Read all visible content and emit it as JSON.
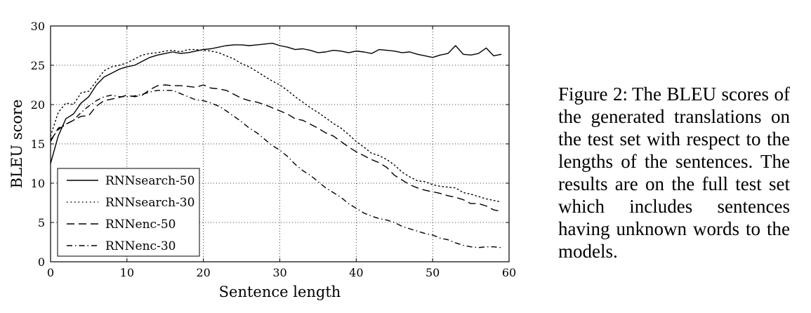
{
  "chart_data": {
    "type": "line",
    "xlabel": "Sentence length",
    "ylabel": "BLEU score",
    "xlim": [
      0,
      60
    ],
    "ylim": [
      0,
      30
    ],
    "xticks": [
      0,
      10,
      20,
      30,
      40,
      50,
      60
    ],
    "yticks": [
      0,
      5,
      10,
      15,
      20,
      25,
      30
    ],
    "grid": true,
    "legend_position": "lower-left",
    "series": [
      {
        "name": "RNNsearch-50",
        "style": "solid",
        "x": [
          0,
          1,
          2,
          3,
          4,
          5,
          6,
          7,
          8,
          9,
          10,
          11,
          12,
          13,
          14,
          15,
          16,
          17,
          18,
          19,
          20,
          21,
          22,
          23,
          24,
          25,
          26,
          27,
          28,
          29,
          30,
          31,
          32,
          33,
          34,
          35,
          36,
          37,
          38,
          39,
          40,
          41,
          42,
          43,
          44,
          45,
          46,
          47,
          48,
          49,
          50,
          51,
          52,
          53,
          54,
          55,
          56,
          57,
          58,
          59
        ],
        "values": [
          12.5,
          16.0,
          18.2,
          18.8,
          20.2,
          21.0,
          22.5,
          23.5,
          24.0,
          24.5,
          24.8,
          25.0,
          25.5,
          26.0,
          26.3,
          26.5,
          26.7,
          26.5,
          26.6,
          26.8,
          27.0,
          27.1,
          27.3,
          27.5,
          27.6,
          27.6,
          27.5,
          27.6,
          27.7,
          27.8,
          27.5,
          27.3,
          27.0,
          27.1,
          26.9,
          26.6,
          26.7,
          26.9,
          26.8,
          26.6,
          26.8,
          26.7,
          26.5,
          27.0,
          26.9,
          26.8,
          26.6,
          26.7,
          26.4,
          26.2,
          26.0,
          26.3,
          26.5,
          27.5,
          26.4,
          26.3,
          26.5,
          27.2,
          26.2,
          26.4
        ]
      },
      {
        "name": "RNNsearch-30",
        "style": "dotted",
        "x": [
          0,
          1,
          2,
          3,
          4,
          5,
          6,
          7,
          8,
          9,
          10,
          11,
          12,
          13,
          14,
          15,
          16,
          17,
          18,
          19,
          20,
          21,
          22,
          23,
          24,
          25,
          26,
          27,
          28,
          29,
          30,
          31,
          32,
          33,
          34,
          35,
          36,
          37,
          38,
          39,
          40,
          41,
          42,
          43,
          44,
          45,
          46,
          47,
          48,
          49,
          50,
          51,
          52,
          53,
          54,
          55,
          56,
          57,
          58,
          59
        ],
        "values": [
          16.0,
          19.0,
          20.2,
          20.0,
          21.5,
          21.7,
          23.0,
          24.3,
          24.8,
          25.0,
          25.3,
          25.8,
          26.3,
          26.5,
          26.6,
          26.8,
          26.9,
          26.7,
          27.0,
          27.0,
          26.9,
          26.8,
          26.6,
          26.2,
          25.8,
          25.2,
          24.8,
          24.2,
          23.6,
          23.0,
          22.5,
          21.8,
          21.0,
          20.3,
          19.6,
          19.0,
          18.3,
          17.6,
          17.0,
          16.2,
          15.3,
          14.6,
          13.8,
          13.5,
          13.0,
          12.3,
          11.4,
          10.8,
          10.3,
          10.2,
          9.8,
          9.6,
          9.5,
          9.4,
          8.8,
          8.6,
          8.3,
          8.0,
          7.8,
          7.6
        ]
      },
      {
        "name": "RNNenc-50",
        "style": "dashed",
        "x": [
          0,
          1,
          2,
          3,
          4,
          5,
          6,
          7,
          8,
          9,
          10,
          11,
          12,
          13,
          14,
          15,
          16,
          17,
          18,
          19,
          20,
          21,
          22,
          23,
          24,
          25,
          26,
          27,
          28,
          29,
          30,
          31,
          32,
          33,
          34,
          35,
          36,
          37,
          38,
          39,
          40,
          41,
          42,
          43,
          44,
          45,
          46,
          47,
          48,
          49,
          50,
          51,
          52,
          53,
          54,
          55,
          56,
          57,
          58,
          59
        ],
        "values": [
          15.5,
          16.8,
          17.5,
          18.0,
          18.5,
          18.6,
          19.8,
          20.5,
          20.7,
          20.9,
          21.2,
          21.0,
          21.2,
          21.9,
          22.4,
          22.5,
          22.4,
          22.4,
          22.3,
          22.2,
          22.5,
          22.1,
          22.0,
          21.8,
          21.3,
          20.8,
          20.5,
          20.3,
          20.0,
          19.6,
          19.2,
          18.8,
          18.2,
          18.0,
          17.5,
          17.0,
          16.4,
          16.0,
          15.3,
          14.6,
          14.0,
          13.5,
          13.0,
          12.6,
          12.0,
          11.0,
          10.4,
          9.8,
          9.4,
          9.1,
          8.9,
          8.7,
          8.4,
          8.2,
          7.9,
          7.4,
          7.4,
          7.1,
          6.6,
          6.4
        ]
      },
      {
        "name": "RNNenc-30",
        "style": "dashdot",
        "x": [
          0,
          1,
          2,
          3,
          4,
          5,
          6,
          7,
          8,
          9,
          10,
          11,
          12,
          13,
          14,
          15,
          16,
          17,
          18,
          19,
          20,
          21,
          22,
          23,
          24,
          25,
          26,
          27,
          28,
          29,
          30,
          31,
          32,
          33,
          34,
          35,
          36,
          37,
          38,
          39,
          40,
          41,
          42,
          43,
          44,
          45,
          46,
          47,
          48,
          49,
          50,
          51,
          52,
          53,
          54,
          55,
          56,
          57,
          58,
          59
        ],
        "values": [
          15.3,
          17.0,
          17.5,
          18.0,
          19.0,
          19.8,
          20.5,
          21.0,
          21.2,
          21.0,
          21.0,
          21.1,
          21.3,
          21.6,
          21.8,
          21.8,
          21.8,
          21.4,
          21.0,
          20.6,
          20.5,
          20.2,
          19.8,
          19.2,
          18.5,
          17.8,
          17.0,
          16.4,
          15.6,
          14.8,
          14.2,
          13.4,
          12.4,
          11.6,
          11.0,
          10.2,
          9.4,
          8.8,
          8.2,
          7.4,
          6.8,
          6.2,
          5.8,
          5.5,
          5.3,
          5.0,
          4.5,
          4.2,
          3.9,
          3.6,
          3.4,
          3.0,
          2.8,
          2.4,
          2.1,
          1.9,
          1.8,
          1.9,
          1.9,
          1.8
        ]
      }
    ]
  },
  "caption": {
    "label": "Figure 2:",
    "text": "The BLEU scores of the generated translations on the test set with respect to the lengths of the sentences. The results are on the full test set which includes sentences having unknown words to the models."
  }
}
